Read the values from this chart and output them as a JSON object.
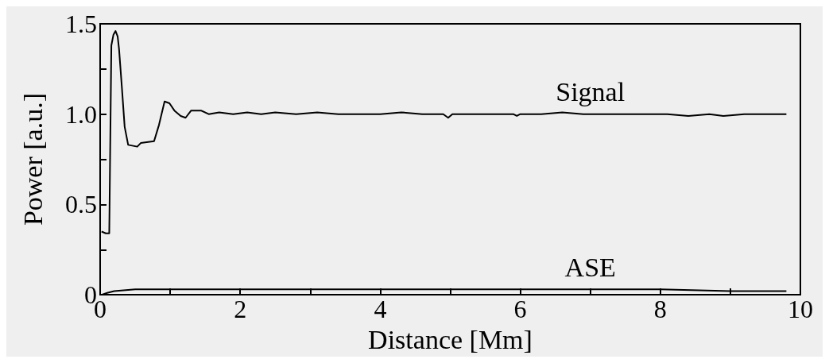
{
  "chart_data": {
    "type": "line",
    "xlabel": "Distance [Mm]",
    "ylabel": "Power [a.u.]",
    "xlim": [
      0,
      10
    ],
    "xticks": [
      0,
      {
        "value": 1,
        "label": null
      },
      2,
      {
        "value": 3,
        "label": null
      },
      4,
      {
        "value": 5,
        "label": null
      },
      6,
      {
        "value": 7,
        "label": null
      },
      8,
      {
        "value": 9,
        "label": null
      },
      10
    ],
    "ylim": [
      0,
      1.5
    ],
    "yticks": [
      0,
      {
        "value": 0.25,
        "label": null
      },
      0.5,
      {
        "value": 0.75,
        "label": null
      },
      {
        "value": 1,
        "label": "1.0"
      },
      {
        "value": 1.25,
        "label": null
      },
      1.5
    ],
    "grid": false,
    "marker": "none",
    "line_style": "solid",
    "series": [
      {
        "name": "Signal",
        "color": "#000000",
        "x": [
          0.02,
          0.08,
          0.13,
          0.16,
          0.19,
          0.22,
          0.25,
          0.27,
          0.31,
          0.35,
          0.4,
          0.53,
          0.58,
          0.77,
          0.84,
          0.92,
          0.99,
          1.06,
          1.15,
          1.22,
          1.3,
          1.44,
          1.55,
          1.7,
          1.9,
          2.1,
          2.3,
          2.5,
          2.8,
          3.1,
          3.4,
          3.7,
          4.0,
          4.3,
          4.6,
          4.9,
          4.97,
          5.03,
          5.3,
          5.6,
          5.9,
          5.95,
          6.0,
          6.3,
          6.6,
          6.9,
          7.2,
          7.5,
          7.8,
          8.1,
          8.4,
          8.7,
          8.9,
          9.2,
          9.5,
          9.8
        ],
        "values": [
          0.35,
          0.34,
          0.34,
          1.38,
          1.44,
          1.46,
          1.43,
          1.36,
          1.15,
          0.93,
          0.83,
          0.82,
          0.84,
          0.85,
          0.94,
          1.07,
          1.06,
          1.02,
          0.99,
          0.98,
          1.02,
          1.02,
          1.0,
          1.01,
          1.0,
          1.01,
          1.0,
          1.01,
          1.0,
          1.01,
          1.0,
          1.0,
          1.0,
          1.01,
          1.0,
          1.0,
          0.98,
          1.0,
          1.0,
          1.0,
          1.0,
          0.99,
          1.0,
          1.0,
          1.01,
          1.0,
          1.0,
          1.0,
          1.0,
          1.0,
          0.99,
          1.0,
          0.99,
          1.0,
          1.0,
          1.0
        ]
      },
      {
        "name": "ASE",
        "color": "#000000",
        "x": [
          0.02,
          0.1,
          0.2,
          0.5,
          1.0,
          2.0,
          3.0,
          4.0,
          5.0,
          6.0,
          7.0,
          8.0,
          9.0,
          9.8
        ],
        "values": [
          0.0,
          0.01,
          0.02,
          0.03,
          0.03,
          0.03,
          0.03,
          0.03,
          0.03,
          0.03,
          0.03,
          0.03,
          0.02,
          0.02
        ]
      }
    ]
  }
}
